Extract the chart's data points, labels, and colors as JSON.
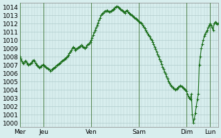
{
  "ylabel": "",
  "ylim": [
    999.5,
    1014.5
  ],
  "yticks": [
    1000,
    1001,
    1002,
    1003,
    1004,
    1005,
    1006,
    1007,
    1008,
    1009,
    1010,
    1011,
    1012,
    1013,
    1014
  ],
  "xtick_labels": [
    "Mer",
    "Jeu",
    "Ven",
    "Sam",
    "Dim",
    "Lun"
  ],
  "xtick_positions": [
    0,
    24,
    72,
    120,
    168,
    192
  ],
  "bg_color": "#d8eeee",
  "grid_color": "#b0cccc",
  "line_color": "#1a6e1a",
  "marker_color": "#1a6e1a",
  "vline_color": "#5a8a5a",
  "data_x": [
    0,
    1,
    2,
    3,
    4,
    5,
    6,
    7,
    8,
    9,
    10,
    11,
    12,
    13,
    14,
    15,
    16,
    17,
    18,
    19,
    20,
    21,
    22,
    23,
    24,
    25,
    26,
    27,
    28,
    29,
    30,
    31,
    32,
    33,
    34,
    35,
    36,
    37,
    38,
    39,
    40,
    41,
    42,
    43,
    44,
    45,
    46,
    47,
    48,
    49,
    50,
    51,
    52,
    53,
    54,
    55,
    56,
    57,
    58,
    59,
    60,
    61,
    62,
    63,
    64,
    65,
    66,
    67,
    68,
    69,
    70,
    71,
    72,
    73,
    74,
    75,
    76,
    77,
    78,
    79,
    80,
    81,
    82,
    83,
    84,
    85,
    86,
    87,
    88,
    89,
    90,
    91,
    92,
    93,
    94,
    95,
    96,
    97,
    98,
    99,
    100,
    101,
    102,
    103,
    104,
    105,
    106,
    107,
    108,
    109,
    110,
    111,
    112,
    113,
    114,
    115,
    116,
    117,
    118,
    119,
    120,
    121,
    122,
    123,
    124,
    125,
    126,
    127,
    128,
    129,
    130,
    131,
    132,
    133,
    134,
    135,
    136,
    137,
    138,
    139,
    140,
    141,
    142,
    143,
    144,
    145,
    146,
    147,
    148,
    149,
    150,
    151,
    152,
    153,
    154,
    155,
    156,
    157,
    158,
    159,
    160,
    161,
    162,
    163,
    164,
    165,
    166,
    167,
    168,
    169,
    170,
    171,
    172,
    173,
    174,
    175,
    176,
    177,
    178,
    179,
    180,
    181,
    182,
    183,
    184,
    185,
    186,
    187,
    188,
    189,
    190,
    191,
    192,
    193,
    194,
    195,
    196,
    197,
    198,
    199,
    200
  ],
  "data_y": [
    1008.0,
    1007.8,
    1007.5,
    1007.3,
    1007.2,
    1007.4,
    1007.5,
    1007.3,
    1007.1,
    1007.0,
    1007.1,
    1007.2,
    1007.3,
    1007.5,
    1007.6,
    1007.4,
    1007.2,
    1007.0,
    1006.9,
    1006.8,
    1006.7,
    1006.8,
    1006.9,
    1007.0,
    1007.0,
    1006.9,
    1006.8,
    1006.7,
    1006.6,
    1006.5,
    1006.4,
    1006.3,
    1006.4,
    1006.5,
    1006.6,
    1006.7,
    1006.8,
    1006.9,
    1007.0,
    1007.1,
    1007.2,
    1007.3,
    1007.4,
    1007.5,
    1007.6,
    1007.7,
    1007.8,
    1007.9,
    1008.0,
    1008.2,
    1008.4,
    1008.6,
    1008.8,
    1009.0,
    1009.2,
    1009.0,
    1008.8,
    1008.9,
    1009.0,
    1009.1,
    1009.2,
    1009.3,
    1009.4,
    1009.3,
    1009.2,
    1009.1,
    1009.0,
    1009.2,
    1009.4,
    1009.5,
    1009.6,
    1009.8,
    1010.0,
    1010.3,
    1010.6,
    1010.9,
    1011.2,
    1011.5,
    1011.8,
    1012.1,
    1012.4,
    1012.7,
    1013.0,
    1013.2,
    1013.3,
    1013.4,
    1013.5,
    1013.5,
    1013.6,
    1013.5,
    1013.4,
    1013.4,
    1013.5,
    1013.6,
    1013.7,
    1013.8,
    1013.9,
    1014.0,
    1014.1,
    1014.0,
    1013.9,
    1013.8,
    1013.7,
    1013.6,
    1013.5,
    1013.4,
    1013.3,
    1013.5,
    1013.6,
    1013.4,
    1013.3,
    1013.2,
    1013.1,
    1013.0,
    1012.9,
    1012.8,
    1012.7,
    1012.6,
    1012.5,
    1012.4,
    1012.3,
    1012.2,
    1012.1,
    1012.0,
    1011.8,
    1011.6,
    1011.4,
    1011.2,
    1011.0,
    1010.8,
    1010.6,
    1010.4,
    1010.2,
    1010.0,
    1009.8,
    1009.5,
    1009.2,
    1008.9,
    1008.6,
    1008.3,
    1008.0,
    1007.7,
    1007.4,
    1007.1,
    1006.8,
    1006.5,
    1006.2,
    1005.9,
    1005.6,
    1005.3,
    1005.0,
    1004.8,
    1004.6,
    1004.4,
    1004.3,
    1004.2,
    1004.1,
    1004.0,
    1004.1,
    1004.2,
    1004.3,
    1004.4,
    1004.5,
    1004.4,
    1004.3,
    1004.2,
    1004.1,
    1004.0,
    1003.8,
    1003.5,
    1003.2,
    1003.0,
    1002.8,
    1003.5,
    1001.0,
    1000.0,
    1000.5,
    1001.2,
    1002.0,
    1002.8,
    1003.5,
    1007.0,
    1008.0,
    1009.0,
    1009.5,
    1010.0,
    1010.5,
    1010.8,
    1011.0,
    1011.2,
    1011.5,
    1011.8,
    1012.0,
    1011.8,
    1011.5,
    1011.2,
    1012.0,
    1012.2,
    1012.1,
    1011.9,
    1012.0
  ]
}
